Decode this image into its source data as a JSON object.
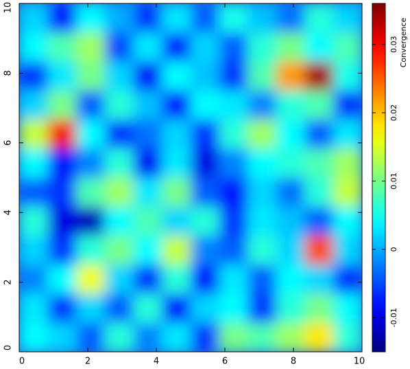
{
  "chart_data": {
    "type": "heatmap",
    "colormap": "jet",
    "xlim": [
      0,
      10
    ],
    "ylim": [
      0,
      10
    ],
    "xticks": [
      0,
      2,
      4,
      6,
      8,
      10
    ],
    "yticks": [
      0,
      2,
      4,
      6,
      8,
      10
    ],
    "clim": [
      -0.015,
      0.036
    ],
    "cticks": [
      -0.01,
      0,
      0.01,
      0.02,
      0.03
    ],
    "colorbar_label": "Convergence",
    "z": [
      [
        0.002,
        -0.008,
        0.004,
        0.0,
        -0.006,
        0.003,
        -0.004,
        0.005,
        0.001,
        -0.003,
        0.006,
        0.002
      ],
      [
        0.004,
        0.008,
        0.012,
        -0.005,
        0.003,
        -0.007,
        0.002,
        -0.004,
        0.006,
        0.01,
        0.004,
        0.008
      ],
      [
        -0.006,
        0.003,
        0.01,
        0.002,
        -0.009,
        0.004,
        0.001,
        -0.006,
        0.008,
        0.022,
        0.034,
        0.005
      ],
      [
        0.002,
        0.01,
        -0.004,
        0.006,
        0.001,
        -0.008,
        0.004,
        0.003,
        -0.002,
        0.006,
        0.008,
        -0.006
      ],
      [
        0.014,
        0.03,
        0.004,
        -0.006,
        -0.003,
        0.002,
        -0.006,
        0.006,
        0.012,
        0.004,
        -0.004,
        0.003
      ],
      [
        0.004,
        -0.008,
        -0.002,
        0.006,
        -0.009,
        0.003,
        -0.01,
        -0.002,
        0.004,
        0.006,
        0.008,
        0.012
      ],
      [
        -0.004,
        -0.006,
        0.008,
        0.012,
        0.003,
        0.01,
        -0.004,
        -0.008,
        0.002,
        -0.003,
        0.006,
        0.014
      ],
      [
        0.006,
        -0.01,
        -0.012,
        0.004,
        0.008,
        0.002,
        0.006,
        -0.006,
        0.003,
        0.001,
        -0.004,
        0.004
      ],
      [
        0.002,
        -0.006,
        0.006,
        0.01,
        0.004,
        0.014,
        -0.002,
        -0.004,
        0.006,
        0.002,
        0.026,
        0.002
      ],
      [
        -0.002,
        0.004,
        0.016,
        0.002,
        -0.006,
        0.006,
        -0.008,
        0.003,
        -0.004,
        0.004,
        0.002,
        -0.006
      ],
      [
        0.003,
        -0.006,
        0.002,
        -0.004,
        0.006,
        -0.008,
        0.002,
        0.004,
        -0.006,
        0.006,
        0.01,
        0.004
      ],
      [
        0.004,
        0.002,
        -0.004,
        0.006,
        -0.002,
        0.003,
        -0.006,
        0.01,
        0.008,
        0.012,
        0.018,
        0.006
      ]
    ]
  }
}
